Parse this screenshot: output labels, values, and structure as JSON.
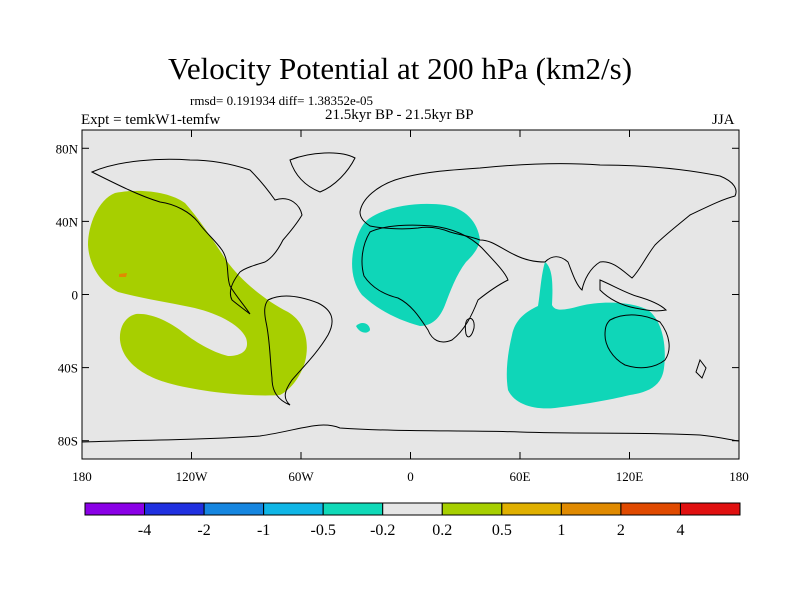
{
  "title": "Velocity Potential at 200 hPa (km2/s)",
  "stats": "rmsd= 0.191934 diff= 1.38352e-05",
  "experiment": "Expt = temkW1-temfw",
  "period": "21.5kyr BP - 21.5kyr BP",
  "season": "JJA",
  "map": {
    "projection": "cylindrical equidistant",
    "lon_range": [
      -180,
      180
    ],
    "lat_range": [
      -90,
      90
    ],
    "lat_ticks": [
      {
        "value": 80,
        "label": "80N"
      },
      {
        "value": 40,
        "label": "40N"
      },
      {
        "value": 0,
        "label": "0"
      },
      {
        "value": -40,
        "label": "40S"
      },
      {
        "value": -80,
        "label": "80S"
      }
    ],
    "lon_ticks": [
      {
        "value": -180,
        "label": "180"
      },
      {
        "value": -120,
        "label": "120W"
      },
      {
        "value": -60,
        "label": "60W"
      },
      {
        "value": 0,
        "label": "0"
      },
      {
        "value": 60,
        "label": "60E"
      },
      {
        "value": 120,
        "label": "120E"
      },
      {
        "value": 180,
        "label": "180"
      }
    ],
    "background_color": "#e6e6e6",
    "shaded_regions": [
      {
        "name": "pacific-positive-anomaly",
        "value_class": "0.2 to 0.5",
        "color": "#a7cf00"
      },
      {
        "name": "atlantic-africa-negative-anomaly",
        "value_class": "-0.5 to -0.2",
        "color": "#0fd6b8"
      },
      {
        "name": "indian-ocean-negative-anomaly",
        "value_class": "-0.5 to -0.2",
        "color": "#0fd6b8"
      }
    ]
  },
  "colorbar": {
    "colors": [
      "#8a00e6",
      "#2030e0",
      "#1686e0",
      "#10b6e6",
      "#10d9b8",
      "#e6e6e6",
      "#a7cf00",
      "#e0b000",
      "#e08a00",
      "#e04a00",
      "#e01010"
    ],
    "labels": [
      "-4",
      "-2",
      "-1",
      "-0.5",
      "-0.2",
      "0.2",
      "0.5",
      "1",
      "2",
      "4"
    ]
  }
}
